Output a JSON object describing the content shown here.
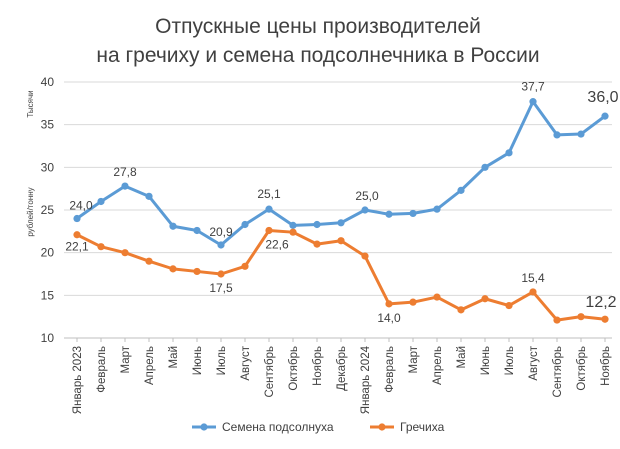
{
  "chart_data": {
    "type": "line",
    "title_lines": [
      "Отпускные цены производителей",
      "на гречиху и семена подсолнечника в России"
    ],
    "y_unit_top": "Тысячи",
    "y_unit_mid": "рублей/тонну",
    "ylim": [
      10,
      40
    ],
    "yticks": [
      10,
      15,
      20,
      25,
      30,
      35,
      40
    ],
    "grid": true,
    "legend_position": "bottom",
    "categories": [
      "Январь 2023",
      "Февраль",
      "Март",
      "Апрель",
      "Май",
      "Июнь",
      "Июль",
      "Август",
      "Сентябрь",
      "Октябрь",
      "Ноябрь",
      "Декабрь",
      "Январь 2024",
      "Февраль",
      "Март",
      "Апрель",
      "Май",
      "Июнь",
      "Июль",
      "Август",
      "Сентябрь",
      "Октябрь",
      "Ноябрь"
    ],
    "series": [
      {
        "name": "Семена подсолнуха",
        "color": "#5b9bd5",
        "values": [
          24.0,
          26.0,
          27.8,
          26.6,
          23.1,
          22.6,
          20.9,
          23.3,
          25.1,
          23.2,
          23.3,
          23.5,
          25.0,
          24.5,
          24.6,
          25.1,
          27.3,
          30.0,
          31.7,
          37.7,
          33.8,
          33.9,
          36.0
        ],
        "labels": [
          {
            "index": 0,
            "text": "24,0"
          },
          {
            "index": 2,
            "text": "27,8"
          },
          {
            "index": 6,
            "text": "20,9"
          },
          {
            "index": 8,
            "text": "25,1"
          },
          {
            "index": 12,
            "text": "25,0"
          },
          {
            "index": 19,
            "text": "37,7"
          },
          {
            "index": 22,
            "text": "36,0"
          }
        ]
      },
      {
        "name": "Гречиха",
        "color": "#ed7d31",
        "values": [
          22.1,
          20.7,
          20.0,
          19.0,
          18.1,
          17.8,
          17.5,
          18.4,
          22.6,
          22.4,
          21.0,
          21.4,
          19.6,
          14.0,
          14.2,
          14.8,
          13.3,
          14.6,
          13.8,
          15.4,
          12.1,
          12.5,
          12.2
        ],
        "labels": [
          {
            "index": 0,
            "text": "22,1"
          },
          {
            "index": 6,
            "text": "17,5"
          },
          {
            "index": 8,
            "text": "22,6"
          },
          {
            "index": 13,
            "text": "14,0"
          },
          {
            "index": 19,
            "text": "15,4"
          },
          {
            "index": 22,
            "text": "12,2"
          }
        ]
      }
    ]
  }
}
